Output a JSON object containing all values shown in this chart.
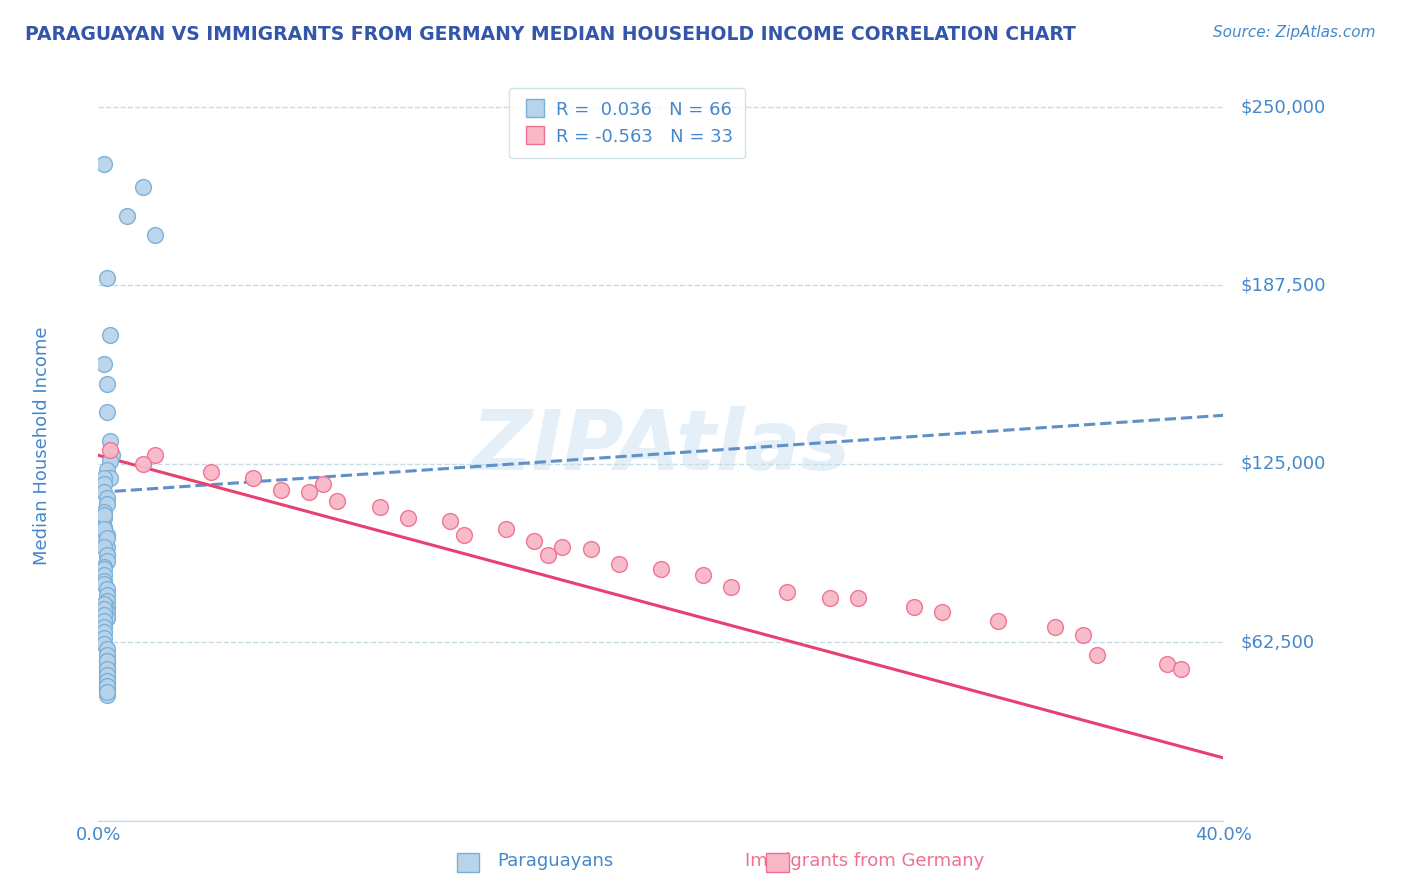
{
  "title": "PARAGUAYAN VS IMMIGRANTS FROM GERMANY MEDIAN HOUSEHOLD INCOME CORRELATION CHART",
  "source": "Source: ZipAtlas.com",
  "ylabel": "Median Household Income",
  "xmin": 0.0,
  "xmax": 0.4,
  "ymin": 0,
  "ymax": 262500,
  "yticks": [
    0,
    62500,
    125000,
    187500,
    250000
  ],
  "ytick_labels": [
    "",
    "$62,500",
    "$125,000",
    "$187,500",
    "$250,000"
  ],
  "xtick_labels": [
    "0.0%",
    "40.0%"
  ],
  "legend_r1": "R =  0.036",
  "legend_n1": "N = 66",
  "legend_r2": "R = -0.563",
  "legend_n2": "N = 33",
  "blue_scatter_color": "#b8d4ec",
  "blue_edge_color": "#7aafd4",
  "pink_scatter_color": "#f8b8c8",
  "pink_edge_color": "#f07090",
  "blue_line_color": "#6090c8",
  "pink_line_color": "#e84070",
  "title_color": "#3355aa",
  "tick_label_color": "#4488cc",
  "grid_color": "#c8dce8",
  "background_color": "#ffffff",
  "watermark": "ZIPAtlas",
  "blue_trend_y0": 115000,
  "blue_trend_y1": 142000,
  "pink_trend_y0": 128000,
  "pink_trend_y1": 22000,
  "par_x": [
    0.002,
    0.016,
    0.01,
    0.02,
    0.003,
    0.004,
    0.002,
    0.003,
    0.003,
    0.004,
    0.005,
    0.004,
    0.003,
    0.004,
    0.002,
    0.002,
    0.002,
    0.003,
    0.003,
    0.002,
    0.002,
    0.002,
    0.003,
    0.002,
    0.003,
    0.003,
    0.002,
    0.002,
    0.003,
    0.002,
    0.003,
    0.003,
    0.002,
    0.002,
    0.002,
    0.002,
    0.002,
    0.003,
    0.003,
    0.003,
    0.003,
    0.003,
    0.003,
    0.002,
    0.002,
    0.002,
    0.002,
    0.002,
    0.002,
    0.002,
    0.002,
    0.003,
    0.003,
    0.003,
    0.003,
    0.003,
    0.003,
    0.003,
    0.003,
    0.003,
    0.003,
    0.003,
    0.003,
    0.003,
    0.003,
    0.003
  ],
  "par_y": [
    230000,
    222000,
    212000,
    205000,
    190000,
    170000,
    160000,
    153000,
    143000,
    133000,
    128000,
    126000,
    123000,
    120000,
    120000,
    118000,
    115000,
    113000,
    111000,
    108000,
    106000,
    103000,
    100000,
    98000,
    96000,
    93000,
    107000,
    102000,
    99000,
    96000,
    93000,
    91000,
    89000,
    88000,
    86000,
    84000,
    83000,
    81000,
    79000,
    77000,
    75000,
    73000,
    71000,
    76000,
    74000,
    72000,
    70000,
    68000,
    66000,
    64000,
    62000,
    60000,
    58000,
    56000,
    54000,
    52000,
    50000,
    48000,
    46000,
    44000,
    56000,
    53000,
    51000,
    49000,
    47000,
    45000
  ],
  "ger_x": [
    0.004,
    0.02,
    0.016,
    0.04,
    0.055,
    0.065,
    0.08,
    0.085,
    0.1,
    0.11,
    0.125,
    0.13,
    0.145,
    0.155,
    0.165,
    0.175,
    0.185,
    0.2,
    0.215,
    0.225,
    0.245,
    0.27,
    0.29,
    0.3,
    0.32,
    0.34,
    0.35,
    0.355,
    0.38,
    0.385,
    0.075,
    0.16,
    0.26
  ],
  "ger_y": [
    130000,
    128000,
    125000,
    122000,
    120000,
    116000,
    118000,
    112000,
    110000,
    106000,
    105000,
    100000,
    102000,
    98000,
    96000,
    95000,
    90000,
    88000,
    86000,
    82000,
    80000,
    78000,
    75000,
    73000,
    70000,
    68000,
    65000,
    58000,
    55000,
    53000,
    115000,
    93000,
    78000
  ]
}
